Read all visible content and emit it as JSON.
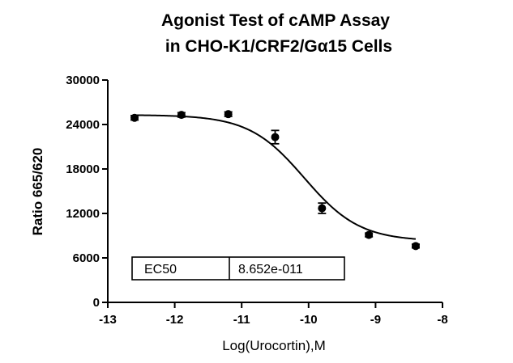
{
  "chart_data": {
    "type": "scatter",
    "title_line1": "Agonist Test of cAMP Assay",
    "title_line2": "in CHO-K1/CRF2/Gα15 Cells",
    "xlabel": "Log(Urocortin),M",
    "ylabel": "Ratio 665/620",
    "xlim": [
      -13,
      -8
    ],
    "ylim": [
      0,
      30000
    ],
    "x_ticks": [
      -13,
      -12,
      -11,
      -10,
      -9,
      -8
    ],
    "y_ticks": [
      0,
      6000,
      12000,
      18000,
      24000,
      30000
    ],
    "x_tick_labels": [
      "-13",
      "-12",
      "-11",
      "-10",
      "-9",
      "-8"
    ],
    "y_tick_labels": [
      "0",
      "6000",
      "12000",
      "18000",
      "24000",
      "30000"
    ],
    "points": [
      {
        "x": -12.6,
        "y": 24900,
        "err": 300
      },
      {
        "x": -11.9,
        "y": 25300,
        "err": 300
      },
      {
        "x": -11.2,
        "y": 25400,
        "err": 300
      },
      {
        "x": -10.5,
        "y": 22300,
        "err": 900
      },
      {
        "x": -9.8,
        "y": 12700,
        "err": 700
      },
      {
        "x": -9.1,
        "y": 9100,
        "err": 250
      },
      {
        "x": -8.4,
        "y": 7600,
        "err": 250
      }
    ],
    "fit": {
      "model": "four-parameter logistic",
      "top": 25300,
      "bottom": 8250,
      "logEC50": -10.063,
      "hill": -1.05,
      "x_range": [
        -12.6,
        -8.4
      ]
    },
    "inset_table": {
      "label": "EC50",
      "value": "8.652e-011"
    }
  }
}
